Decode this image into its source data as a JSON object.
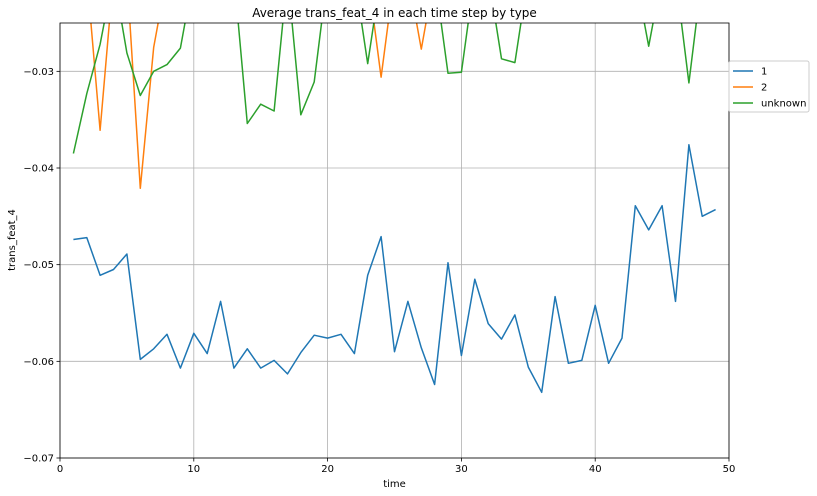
{
  "chart_data": {
    "type": "line",
    "title": "Average trans_feat_4 in each time step by type",
    "xlabel": "time",
    "ylabel": "trans_feat_4",
    "xlim": [
      0,
      50
    ],
    "ylim": [
      -0.07,
      -0.025
    ],
    "xticks": [
      0,
      10,
      20,
      30,
      40,
      50
    ],
    "yticks": [
      -0.07,
      -0.06,
      -0.05,
      -0.04,
      -0.03
    ],
    "xtick_labels": [
      "0",
      "10",
      "20",
      "30",
      "40",
      "50"
    ],
    "ytick_labels": [
      "−0.07",
      "−0.06",
      "−0.05",
      "−0.04",
      "−0.03"
    ],
    "grid": true,
    "legend_position": "right, outside",
    "series": [
      {
        "name": "1",
        "color": "#1f77b4",
        "x": [
          1,
          2,
          3,
          4,
          5,
          6,
          7,
          8,
          9,
          10,
          11,
          12,
          13,
          14,
          15,
          16,
          17,
          18,
          19,
          20,
          21,
          22,
          23,
          24,
          25,
          26,
          27,
          28,
          29,
          30,
          31,
          32,
          33,
          34,
          35,
          36,
          37,
          38,
          39,
          40,
          41,
          42,
          43,
          44,
          45,
          46,
          47,
          48,
          49
        ],
        "y": [
          -0.0474,
          -0.0472,
          -0.0511,
          -0.0505,
          -0.0489,
          -0.0598,
          -0.0587,
          -0.0572,
          -0.0607,
          -0.0571,
          -0.0592,
          -0.0538,
          -0.0607,
          -0.0587,
          -0.0607,
          -0.0599,
          -0.0613,
          -0.0591,
          -0.0573,
          -0.0576,
          -0.0572,
          -0.0592,
          -0.0511,
          -0.0471,
          -0.059,
          -0.0538,
          -0.0586,
          -0.0624,
          -0.0498,
          -0.0594,
          -0.0515,
          -0.0561,
          -0.0577,
          -0.0552,
          -0.0606,
          -0.0632,
          -0.0533,
          -0.0602,
          -0.0599,
          -0.0542,
          -0.0602,
          -0.0576,
          -0.0439,
          -0.0464,
          -0.0439,
          -0.0538,
          -0.0376,
          -0.045,
          -0.0443
        ]
      },
      {
        "name": "2",
        "color": "#ff7f0e",
        "x": [
          1,
          2,
          3,
          4,
          5,
          6,
          7,
          8,
          9,
          10,
          11,
          12,
          13,
          14,
          15,
          16,
          17,
          18,
          19,
          20,
          21,
          22,
          23,
          24,
          25,
          26,
          27,
          28,
          29,
          30,
          31,
          32,
          33,
          34,
          35,
          36,
          37,
          38,
          39,
          40,
          41,
          42,
          43,
          44,
          45,
          46,
          47,
          48,
          49
        ],
        "y": [
          -0.02,
          -0.02,
          -0.0361,
          -0.02,
          -0.02,
          -0.0421,
          -0.0275,
          -0.02,
          -0.02,
          -0.02,
          -0.02,
          -0.02,
          -0.02,
          -0.02,
          -0.02,
          -0.02,
          -0.02,
          -0.02,
          -0.02,
          -0.02,
          -0.02,
          -0.02,
          -0.02,
          -0.0306,
          -0.02,
          -0.02,
          -0.0277,
          -0.02,
          -0.02,
          -0.02,
          -0.02,
          -0.02,
          -0.02,
          -0.02,
          -0.02,
          -0.02,
          -0.02,
          -0.02,
          -0.02,
          -0.02,
          -0.02,
          -0.02,
          -0.02,
          -0.02,
          -0.02,
          -0.02,
          -0.02,
          -0.02,
          -0.02
        ]
      },
      {
        "name": "unknown",
        "color": "#2ca02c",
        "x": [
          1,
          2,
          3,
          4,
          5,
          6,
          7,
          8,
          9,
          10,
          11,
          12,
          13,
          14,
          15,
          16,
          17,
          18,
          19,
          20,
          21,
          22,
          23,
          24,
          25,
          26,
          27,
          28,
          29,
          30,
          31,
          32,
          33,
          34,
          35,
          36,
          37,
          38,
          39,
          40,
          41,
          42,
          43,
          44,
          45,
          46,
          47,
          48,
          49
        ],
        "y": [
          -0.0385,
          -0.0323,
          -0.0272,
          -0.02,
          -0.0281,
          -0.0325,
          -0.03,
          -0.0293,
          -0.0276,
          -0.02,
          -0.02,
          -0.02,
          -0.02,
          -0.0354,
          -0.0334,
          -0.0341,
          -0.02,
          -0.0345,
          -0.0311,
          -0.02,
          -0.02,
          -0.02,
          -0.0292,
          -0.02,
          -0.02,
          -0.02,
          -0.02,
          -0.02,
          -0.0302,
          -0.0301,
          -0.02,
          -0.02,
          -0.0287,
          -0.0291,
          -0.02,
          -0.02,
          -0.02,
          -0.02,
          -0.02,
          -0.02,
          -0.02,
          -0.02,
          -0.02,
          -0.0274,
          -0.02,
          -0.02,
          -0.0312,
          -0.02,
          -0.02
        ]
      }
    ]
  }
}
